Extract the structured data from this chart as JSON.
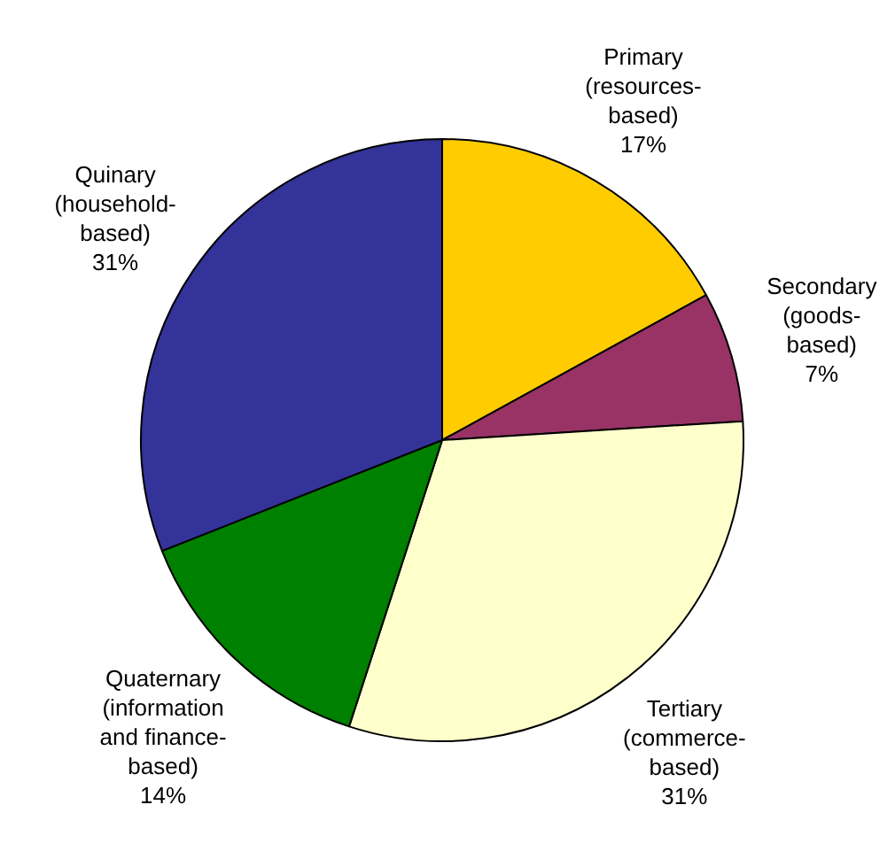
{
  "chart_data": {
    "type": "pie",
    "categories": [
      "Primary (resources-based)",
      "Secondary (goods-based)",
      "Tertiary (commerce-based)",
      "Quaternary (information and finance-based)",
      "Quinary (household-based)"
    ],
    "values": [
      17,
      7,
      31,
      14,
      31
    ],
    "value_labels": [
      "17%",
      "7%",
      "31%",
      "14%",
      "31%"
    ],
    "colors": [
      "#ffcc00",
      "#993366",
      "#ffffcc",
      "#008000",
      "#333399"
    ]
  }
}
